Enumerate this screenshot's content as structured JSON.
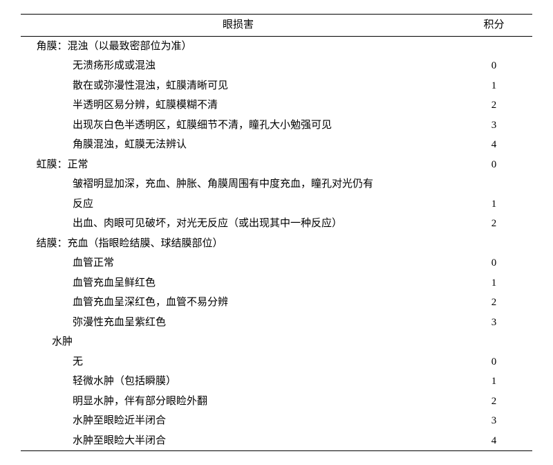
{
  "header": {
    "col1": "眼损害",
    "col2": "积分"
  },
  "rows": [
    {
      "text": "角膜：混浊（以最致密部位为准）",
      "indent": "indent0",
      "score": ""
    },
    {
      "text": "无溃疡形成或混浊",
      "indent": "indent1",
      "score": "0"
    },
    {
      "text": "散在或弥漫性混浊，虹膜清晰可见",
      "indent": "indent1",
      "score": "1"
    },
    {
      "text": "半透明区易分辨，虹膜模糊不清",
      "indent": "indent1",
      "score": "2"
    },
    {
      "text": "出现灰白色半透明区，虹膜细节不清，瞳孔大小勉强可见",
      "indent": "indent1",
      "score": "3"
    },
    {
      "text": "角膜混浊，虹膜无法辨认",
      "indent": "indent1",
      "score": "4"
    },
    {
      "text": "虹膜：正常",
      "indent": "indent0",
      "score": "0"
    },
    {
      "text": "皱褶明显加深，充血、肿胀、角膜周围有中度充血，瞳孔对光仍有",
      "indent": "indent1",
      "score": ""
    },
    {
      "text": "反应",
      "indent": "indent1",
      "score": "1"
    },
    {
      "text": "出血、肉眼可见破坏，对光无反应（或出现其中一种反应）",
      "indent": "indent1",
      "score": "2"
    },
    {
      "text": "结膜：充血（指眼睑结膜、球结膜部位）",
      "indent": "indent0",
      "score": ""
    },
    {
      "text": "血管正常",
      "indent": "indent1",
      "score": "0"
    },
    {
      "text": "血管充血呈鲜红色",
      "indent": "indent1",
      "score": "1"
    },
    {
      "text": "血管充血呈深红色，血管不易分辨",
      "indent": "indent1",
      "score": "2"
    },
    {
      "text": "弥漫性充血呈紫红色",
      "indent": "indent1",
      "score": "3"
    },
    {
      "text": "水肿",
      "indent": "indent-sub",
      "score": ""
    },
    {
      "text": "无",
      "indent": "indent1",
      "score": "0"
    },
    {
      "text": "轻微水肿（包括瞬膜）",
      "indent": "indent1",
      "score": "1"
    },
    {
      "text": "明显水肿，伴有部分眼睑外翻",
      "indent": "indent1",
      "score": "2"
    },
    {
      "text": "水肿至眼睑近半闭合",
      "indent": "indent1",
      "score": "3"
    },
    {
      "text": "水肿至眼睑大半闭合",
      "indent": "indent1",
      "score": "4"
    }
  ]
}
